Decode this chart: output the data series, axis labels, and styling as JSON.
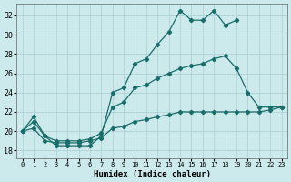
{
  "bg_color": "#cce9ec",
  "grid_color": "#aacfd4",
  "line_color": "#1a6e6a",
  "xlabel": "Humidex (Indice chaleur)",
  "xlim": [
    -0.5,
    23.5
  ],
  "ylim": [
    17.2,
    33.2
  ],
  "yticks": [
    18,
    20,
    22,
    24,
    26,
    28,
    30,
    32
  ],
  "xticks": [
    0,
    1,
    2,
    3,
    4,
    5,
    6,
    7,
    8,
    9,
    10,
    11,
    12,
    13,
    14,
    15,
    16,
    17,
    18,
    19,
    20,
    21,
    22,
    23
  ],
  "line1_x": [
    0,
    1,
    2,
    3,
    4,
    5,
    6,
    7,
    8,
    9,
    10,
    11,
    12,
    13,
    14,
    15,
    16,
    17,
    18,
    19
  ],
  "line1_y": [
    20.0,
    21.5,
    19.5,
    18.5,
    18.5,
    18.5,
    18.5,
    19.5,
    24.0,
    24.5,
    27.0,
    27.5,
    29.0,
    30.3,
    32.5,
    31.5,
    31.5,
    32.5,
    31.0,
    31.5
  ],
  "line2_x": [
    0,
    1,
    2,
    3,
    4,
    5,
    6,
    7,
    8,
    9,
    10,
    11,
    12,
    13,
    14,
    15,
    16,
    17,
    18,
    19,
    20,
    21,
    22,
    23
  ],
  "line2_y": [
    20.0,
    21.0,
    19.5,
    19.0,
    19.0,
    19.0,
    19.2,
    19.8,
    22.5,
    23.0,
    24.5,
    24.8,
    25.5,
    26.0,
    26.5,
    26.8,
    27.0,
    27.5,
    27.8,
    26.5,
    24.0,
    22.5,
    22.5,
    22.5
  ],
  "line3_x": [
    0,
    1,
    2,
    3,
    4,
    5,
    6,
    7,
    8,
    9,
    10,
    11,
    12,
    13,
    14,
    15,
    16,
    17,
    18,
    19,
    20,
    21,
    22,
    23
  ],
  "line3_y": [
    20.0,
    20.3,
    19.0,
    18.8,
    18.8,
    18.8,
    19.0,
    19.3,
    20.3,
    20.5,
    21.0,
    21.2,
    21.5,
    21.7,
    22.0,
    22.0,
    22.0,
    22.0,
    22.0,
    22.0,
    22.0,
    22.0,
    22.2,
    22.5
  ]
}
